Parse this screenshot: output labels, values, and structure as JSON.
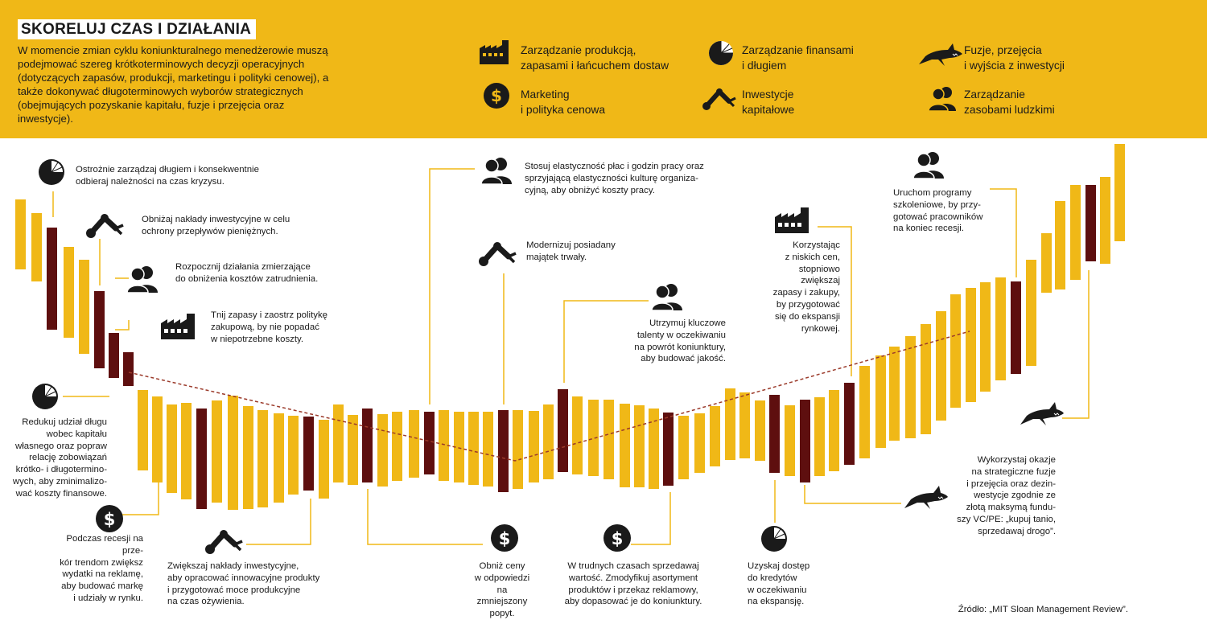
{
  "title": "SKORELUJ CZAS I DZIAŁANIA",
  "intro": "W momencie zmian cyklu koniunkturalnego menedżerowie muszą podejmować szereg krótkoterminowych decyzji operacyjnych (dotyczących zapasów, produkcji, marketingu i polityki cenowej), a także dokonywać długoterminowych wyborów strategicznych (obejmujących pozyskanie kapitału, fuzje i przejęcia oraz inwestycje).",
  "legend": [
    {
      "icon": "factory-icon",
      "line1": "Zarządzanie produkcją,",
      "line2": "zapasami i łańcuchem dostaw"
    },
    {
      "icon": "pie-chart-icon",
      "line1": "Zarządzanie finansami",
      "line2": "i długiem"
    },
    {
      "icon": "shark-icon",
      "line1": "Fuzje, przejęcia",
      "line2": "i wyjścia z inwestycji"
    },
    {
      "icon": "dollar-coin-icon",
      "line1": "Marketing",
      "line2": "i polityka cenowa"
    },
    {
      "icon": "robotic-arm-icon",
      "line1": "Inwestycje",
      "line2": "kapitałowe"
    },
    {
      "icon": "people-icon",
      "line1": "Zarządzanie",
      "line2": "zasobami ludzkimi"
    }
  ],
  "notes": {
    "n1": "Ostrożnie zarządzaj długiem i konsekwentnie\nodbieraj należności na czas kryzysu.",
    "n2": "Obniżaj nakłady inwestycyjne w celu\nochrony przepływów pieniężnych.",
    "n3": "Rozpocznij działania zmierzające\ndo obniżenia kosztów zatrudnienia.",
    "n4": "Tnij zapasy i zaostrz politykę\nzakupową, by nie popadać\nw niepotrzebne koszty.",
    "n5": "Redukuj udział długu\nwobec kapitału\nwłasnego oraz popraw\nrelację zobowiązań\nkrótko- i długotermino-\nwych, aby zminimalizo-\nwać koszty finansowe.",
    "n6": "Podczas recesji na prze-\nkór trendom zwiększ\nwydatki na reklamę,\naby budować markę\ni udziały w rynku.",
    "n7": "Zwiększaj nakłady inwestycyjne,\naby opracować innowacyjne produkty\ni przygotować moce produkcyjne\nna czas ożywienia.",
    "n8": "Stosuj elastyczność płac i godzin pracy oraz\nsprzyjającą elastyczności kulturę organiza-\ncyjną, aby obniżyć koszty pracy.",
    "n9": "Modernizuj posiadany\nmajątek trwały.",
    "n10": "Obniż ceny\nw odpowiedzi\nna zmniejszony\npopyt.",
    "n11": "Utrzymuj kluczowe\ntalenty w oczekiwaniu\nna powrót koniunktury,\naby budować jakość.",
    "n12": "W trudnych czasach sprzedawaj\nwartość. Zmodyfikuj asortyment\nproduktów i przekaz reklamowy,\naby dopasować je do koniunktury.",
    "n13": "Korzystając\nz niskich cen,\nstopniowo\nzwiększaj\nzapasy i zakupy,\nby przygotować\nsię do ekspansji\nrynkowej.",
    "n14": "Uzyskaj dostęp\ndo kredytów\nw oczekiwaniu\nna ekspansję.",
    "n15": "Uruchom programy\nszkoleniowe, by przy-\ngotować pracowników\nna koniec recesji.",
    "n16": "Wykorzystaj okazje\nna strategiczne fuzje\ni przejęcia oraz dezin-\nwestycje zgodnie ze\nzłotą maksymą fundu-\nszy VC/PE: „kupuj tanio,\nsprzedawaj drogo”."
  },
  "source": "Źródło: „MIT Sloan Management Review”.",
  "colors": {
    "yellow": "#f0b817",
    "maroon": "#5e0f0f",
    "dark": "#1a1a1a",
    "trend": "#9b3a2a"
  }
}
